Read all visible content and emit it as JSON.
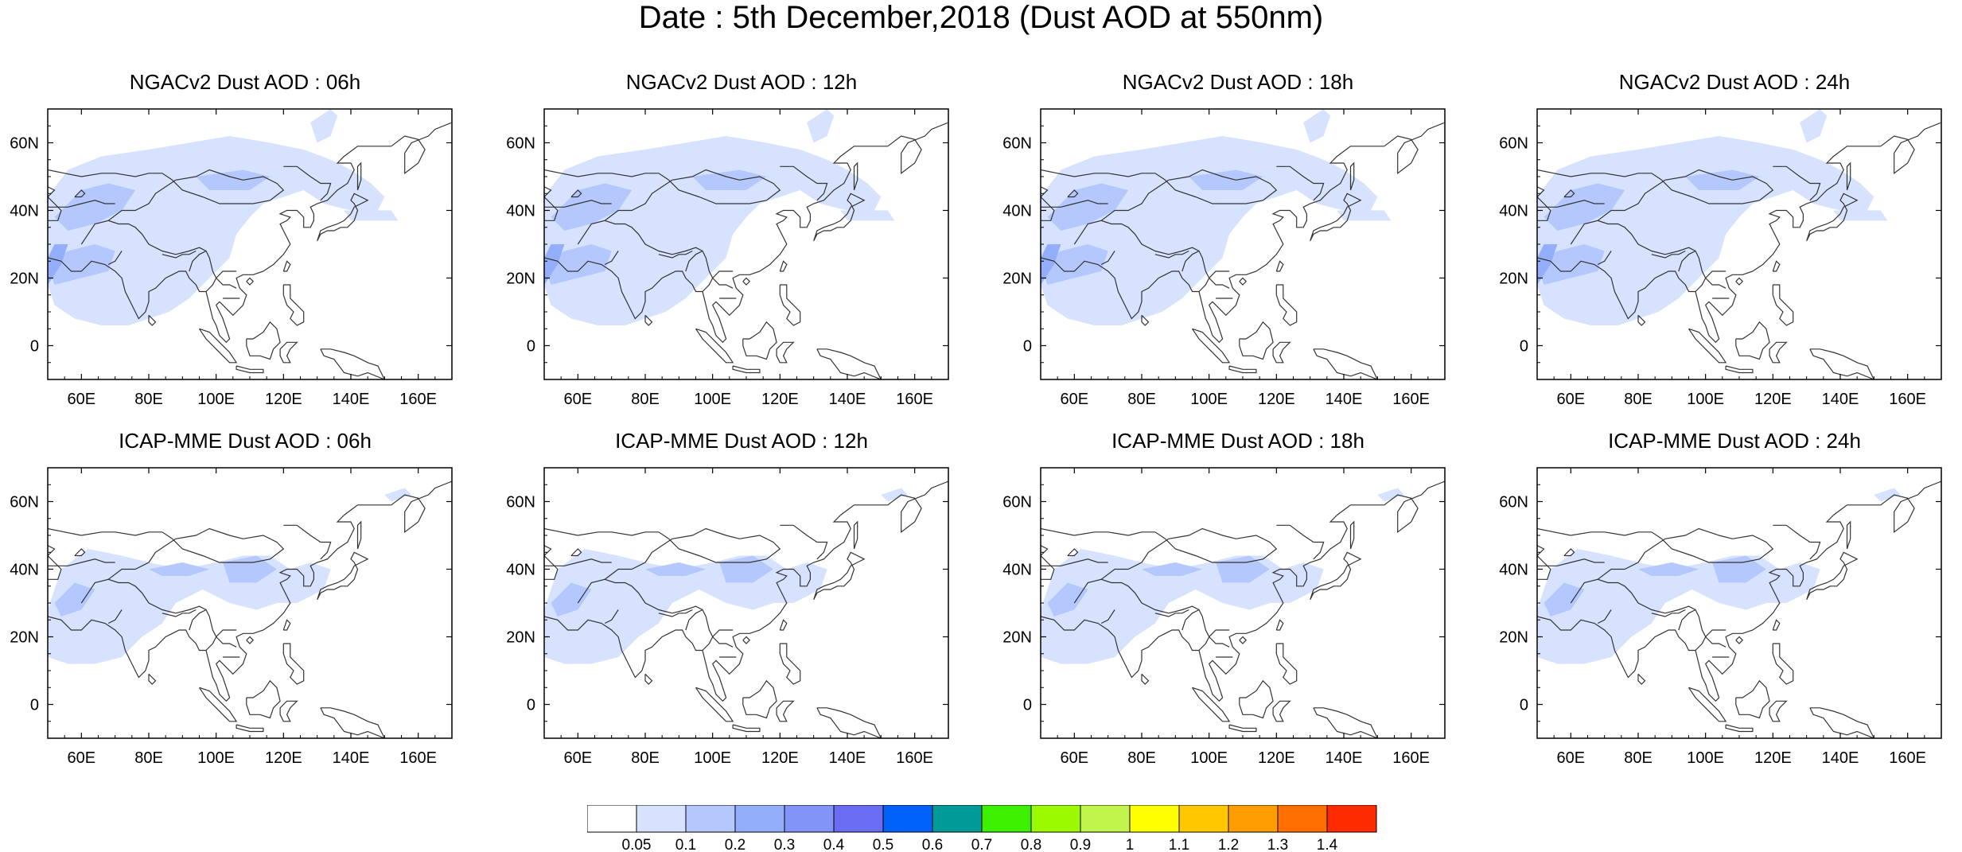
{
  "title": "Date : 5th December,2018 (Dust AOD at 550nm)",
  "axes": {
    "x_ticks": [
      "60E",
      "80E",
      "100E",
      "120E",
      "140E",
      "160E"
    ],
    "x_values": [
      60,
      80,
      100,
      120,
      140,
      160
    ],
    "y_ticks": [
      "60N",
      "40N",
      "20N",
      "0"
    ],
    "y_values": [
      60,
      40,
      20,
      0
    ],
    "xlim": [
      50,
      170
    ],
    "ylim": [
      -10,
      70
    ]
  },
  "panels": [
    {
      "id": "ngac-06",
      "title": "NGACv2 Dust AOD : 06h",
      "model": "NGACv2",
      "hour": "06h",
      "row": 0,
      "col": 0
    },
    {
      "id": "ngac-12",
      "title": "NGACv2 Dust AOD : 12h",
      "model": "NGACv2",
      "hour": "12h",
      "row": 0,
      "col": 1
    },
    {
      "id": "ngac-18",
      "title": "NGACv2 Dust AOD : 18h",
      "model": "NGACv2",
      "hour": "18h",
      "row": 0,
      "col": 2
    },
    {
      "id": "ngac-24",
      "title": "NGACv2 Dust AOD : 24h",
      "model": "NGACv2",
      "hour": "24h",
      "row": 0,
      "col": 3
    },
    {
      "id": "icap-06",
      "title": "ICAP-MME Dust AOD : 06h",
      "model": "ICAP-MME",
      "hour": "06h",
      "row": 1,
      "col": 0
    },
    {
      "id": "icap-12",
      "title": "ICAP-MME Dust AOD : 12h",
      "model": "ICAP-MME",
      "hour": "12h",
      "row": 1,
      "col": 1
    },
    {
      "id": "icap-18",
      "title": "ICAP-MME Dust AOD : 18h",
      "model": "ICAP-MME",
      "hour": "18h",
      "row": 1,
      "col": 2
    },
    {
      "id": "icap-24",
      "title": "ICAP-MME Dust AOD : 24h",
      "model": "ICAP-MME",
      "hour": "24h",
      "row": 1,
      "col": 3
    }
  ],
  "colorbar": {
    "labels": [
      "0.05",
      "0.1",
      "0.2",
      "0.3",
      "0.4",
      "0.5",
      "0.6",
      "0.7",
      "0.8",
      "0.9",
      "1",
      "1.1",
      "1.2",
      "1.3",
      "1.4"
    ],
    "colors": [
      "#ffffff",
      "#d6e2fe",
      "#b4c8fd",
      "#93affc",
      "#8194f8",
      "#6a6cf2",
      "#0062f8",
      "#009a99",
      "#3cf000",
      "#9cfa00",
      "#c2f54c",
      "#ffff00",
      "#ffc700",
      "#ff9c00",
      "#ff6e00",
      "#ff2b00"
    ]
  },
  "colors": {
    "dust_light": "#d6e2fe",
    "dust_mid": "#b4c8fd",
    "dust_high": "#93affc",
    "dust_peak": "#6a6cf2",
    "coast": "#333333"
  }
}
